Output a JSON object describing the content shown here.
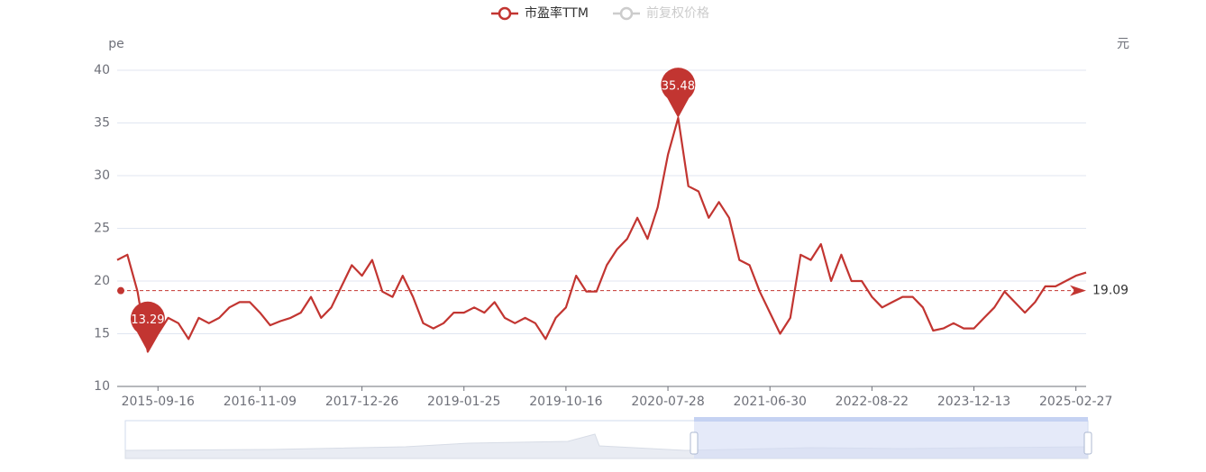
{
  "chart_data": {
    "type": "line",
    "y_axis_name": "pe",
    "y2_axis_name": "元",
    "categories": [
      null,
      null,
      null,
      null,
      "2015-09-16",
      null,
      null,
      null,
      null,
      null,
      null,
      null,
      null,
      null,
      "2016-11-09",
      null,
      null,
      null,
      null,
      null,
      null,
      null,
      null,
      null,
      "2017-12-26",
      null,
      null,
      null,
      null,
      null,
      null,
      null,
      null,
      null,
      "2019-01-25",
      null,
      null,
      null,
      null,
      null,
      null,
      null,
      null,
      null,
      "2019-10-16",
      null,
      null,
      null,
      null,
      null,
      null,
      null,
      null,
      null,
      "2020-07-28",
      null,
      null,
      null,
      null,
      null,
      null,
      null,
      null,
      null,
      "2021-06-30",
      null,
      null,
      null,
      null,
      null,
      null,
      null,
      null,
      null,
      "2022-08-22",
      null,
      null,
      null,
      null,
      null,
      null,
      null,
      null,
      null,
      "2023-12-13",
      null,
      null,
      null,
      null,
      null,
      null,
      null,
      null,
      null,
      "2025-02-27",
      null
    ],
    "series": [
      {
        "name": "市盈率TTM",
        "color": "#c23531",
        "values": [
          22,
          22.5,
          19,
          13.29,
          15,
          16.5,
          16,
          14.5,
          16.5,
          16,
          16.5,
          17.5,
          18,
          18,
          17,
          15.8,
          16.2,
          16.5,
          17,
          18.5,
          16.5,
          17.5,
          19.5,
          21.5,
          20.5,
          22,
          19,
          18.5,
          20.5,
          18.5,
          16,
          15.5,
          16,
          17,
          17,
          17.5,
          17,
          18,
          16.5,
          16,
          16.5,
          16,
          14.5,
          16.5,
          17.5,
          20.5,
          19,
          19,
          21.5,
          23,
          24,
          26,
          24,
          27,
          32,
          35.48,
          29,
          28.5,
          26,
          27.5,
          26,
          22,
          21.5,
          19,
          17,
          15,
          16.5,
          22.5,
          22,
          23.5,
          20,
          22.5,
          20,
          20,
          18.5,
          17.5,
          18,
          18.5,
          18.5,
          17.5,
          15.3,
          15.5,
          16,
          15.5,
          15.5,
          16.5,
          17.5,
          19,
          18,
          17,
          18,
          19.5,
          19.5,
          20,
          20.5,
          20.8
        ]
      }
    ],
    "inactive_legend": {
      "name": "前复权价格",
      "color": "#cccccc"
    },
    "average_line": 19.09,
    "ylim": [
      10,
      40
    ],
    "yticks": [
      10,
      15,
      20,
      25,
      30,
      35,
      40
    ],
    "grid": true
  }
}
